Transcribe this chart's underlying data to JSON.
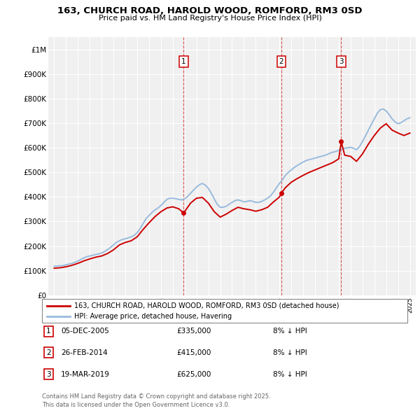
{
  "title": "163, CHURCH ROAD, HAROLD WOOD, ROMFORD, RM3 0SD",
  "subtitle": "Price paid vs. HM Land Registry's House Price Index (HPI)",
  "legend_line1": "163, CHURCH ROAD, HAROLD WOOD, ROMFORD, RM3 0SD (detached house)",
  "legend_line2": "HPI: Average price, detached house, Havering",
  "footnote": "Contains HM Land Registry data © Crown copyright and database right 2025.\nThis data is licensed under the Open Government Licence v3.0.",
  "sale_color": "#cc0000",
  "hpi_color": "#99bbdd",
  "yticks": [
    0,
    100000,
    200000,
    300000,
    400000,
    500000,
    600000,
    700000,
    800000,
    900000,
    1000000
  ],
  "ytick_labels": [
    "£0",
    "£100K",
    "£200K",
    "£300K",
    "£400K",
    "£500K",
    "£600K",
    "£700K",
    "£800K",
    "£900K",
    "£1M"
  ],
  "sales": [
    {
      "date_num": 2005.92,
      "price": 335000,
      "label": "1"
    },
    {
      "date_num": 2014.15,
      "price": 415000,
      "label": "2"
    },
    {
      "date_num": 2019.21,
      "price": 625000,
      "label": "3"
    }
  ],
  "sale_annotations": [
    {
      "label": "1",
      "date": "05-DEC-2005",
      "price": "£335,000",
      "note": "8% ↓ HPI"
    },
    {
      "label": "2",
      "date": "26-FEB-2014",
      "price": "£415,000",
      "note": "8% ↓ HPI"
    },
    {
      "label": "3",
      "date": "19-MAR-2019",
      "price": "£625,000",
      "note": "8% ↓ HPI"
    }
  ],
  "vline_dates": [
    2005.92,
    2014.15,
    2019.21
  ],
  "hpi_data": {
    "years": [
      1995.0,
      1995.25,
      1995.5,
      1995.75,
      1996.0,
      1996.25,
      1996.5,
      1996.75,
      1997.0,
      1997.25,
      1997.5,
      1997.75,
      1998.0,
      1998.25,
      1998.5,
      1998.75,
      1999.0,
      1999.25,
      1999.5,
      1999.75,
      2000.0,
      2000.25,
      2000.5,
      2000.75,
      2001.0,
      2001.25,
      2001.5,
      2001.75,
      2002.0,
      2002.25,
      2002.5,
      2002.75,
      2003.0,
      2003.25,
      2003.5,
      2003.75,
      2004.0,
      2004.25,
      2004.5,
      2004.75,
      2005.0,
      2005.25,
      2005.5,
      2005.75,
      2006.0,
      2006.25,
      2006.5,
      2006.75,
      2007.0,
      2007.25,
      2007.5,
      2007.75,
      2008.0,
      2008.25,
      2008.5,
      2008.75,
      2009.0,
      2009.25,
      2009.5,
      2009.75,
      2010.0,
      2010.25,
      2010.5,
      2010.75,
      2011.0,
      2011.25,
      2011.5,
      2011.75,
      2012.0,
      2012.25,
      2012.5,
      2012.75,
      2013.0,
      2013.25,
      2013.5,
      2013.75,
      2014.0,
      2014.25,
      2014.5,
      2014.75,
      2015.0,
      2015.25,
      2015.5,
      2015.75,
      2016.0,
      2016.25,
      2016.5,
      2016.75,
      2017.0,
      2017.25,
      2017.5,
      2017.75,
      2018.0,
      2018.25,
      2018.5,
      2018.75,
      2019.0,
      2019.25,
      2019.5,
      2019.75,
      2020.0,
      2020.25,
      2020.5,
      2020.75,
      2021.0,
      2021.25,
      2021.5,
      2021.75,
      2022.0,
      2022.25,
      2022.5,
      2022.75,
      2023.0,
      2023.25,
      2023.5,
      2023.75,
      2024.0,
      2024.25,
      2024.5,
      2024.75,
      2025.0
    ],
    "values": [
      118000,
      119000,
      120000,
      121000,
      124000,
      127000,
      130000,
      134000,
      140000,
      146000,
      152000,
      157000,
      160000,
      163000,
      166000,
      168000,
      172000,
      178000,
      186000,
      195000,
      205000,
      215000,
      222000,
      227000,
      230000,
      234000,
      238000,
      244000,
      255000,
      272000,
      292000,
      312000,
      325000,
      337000,
      347000,
      355000,
      365000,
      378000,
      390000,
      395000,
      395000,
      393000,
      390000,
      388000,
      392000,
      402000,
      415000,
      428000,
      440000,
      450000,
      455000,
      448000,
      435000,
      415000,
      392000,
      370000,
      358000,
      358000,
      362000,
      370000,
      378000,
      385000,
      388000,
      385000,
      380000,
      382000,
      385000,
      382000,
      378000,
      378000,
      382000,
      388000,
      395000,
      405000,
      420000,
      438000,
      455000,
      470000,
      488000,
      500000,
      510000,
      520000,
      528000,
      535000,
      542000,
      548000,
      552000,
      555000,
      558000,
      562000,
      565000,
      568000,
      572000,
      578000,
      582000,
      585000,
      590000,
      595000,
      598000,
      600000,
      602000,
      598000,
      592000,
      605000,
      625000,
      648000,
      672000,
      695000,
      718000,
      740000,
      755000,
      758000,
      750000,
      735000,
      718000,
      705000,
      698000,
      702000,
      710000,
      718000,
      722000
    ]
  },
  "sold_data": {
    "years": [
      1995.0,
      1995.5,
      1996.0,
      1996.5,
      1997.0,
      1997.5,
      1998.0,
      1998.5,
      1999.0,
      1999.5,
      2000.0,
      2000.5,
      2001.0,
      2001.5,
      2002.0,
      2002.5,
      2003.0,
      2003.5,
      2004.0,
      2004.5,
      2005.0,
      2005.5,
      2005.92,
      2006.5,
      2007.0,
      2007.5,
      2008.0,
      2008.5,
      2009.0,
      2009.5,
      2010.0,
      2010.5,
      2011.0,
      2011.5,
      2012.0,
      2012.5,
      2013.0,
      2013.5,
      2014.0,
      2014.15,
      2014.5,
      2015.0,
      2015.5,
      2016.0,
      2016.5,
      2017.0,
      2017.5,
      2018.0,
      2018.5,
      2019.0,
      2019.21,
      2019.5,
      2020.0,
      2020.5,
      2021.0,
      2021.5,
      2022.0,
      2022.5,
      2023.0,
      2023.5,
      2024.0,
      2024.5,
      2025.0
    ],
    "values": [
      110000,
      112000,
      116000,
      122000,
      130000,
      140000,
      148000,
      155000,
      160000,
      170000,
      185000,
      205000,
      215000,
      222000,
      238000,
      268000,
      295000,
      320000,
      340000,
      355000,
      360000,
      352000,
      335000,
      375000,
      395000,
      398000,
      375000,
      340000,
      318000,
      330000,
      345000,
      358000,
      352000,
      348000,
      342000,
      348000,
      358000,
      380000,
      400000,
      415000,
      438000,
      460000,
      475000,
      488000,
      500000,
      510000,
      520000,
      530000,
      540000,
      555000,
      625000,
      570000,
      565000,
      545000,
      575000,
      615000,
      650000,
      680000,
      698000,
      672000,
      660000,
      650000,
      660000
    ]
  },
  "xlim": [
    1994.5,
    2025.5
  ],
  "ylim": [
    0,
    1050000
  ],
  "background_color": "#f0f0f0",
  "grid_color": "#ffffff"
}
